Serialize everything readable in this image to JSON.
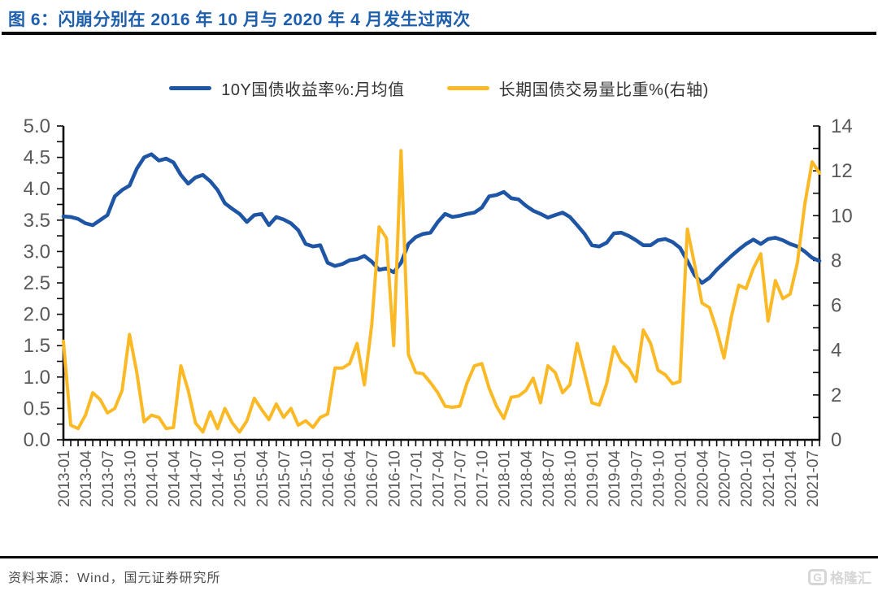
{
  "title": "图 6：闪崩分别在 2016 年 10 月与 2020 年 4 月发生过两次",
  "source_line": "资料来源：Wind，国元证券研究所",
  "logo_text": "格隆汇",
  "colors": {
    "title_blue": "#1e5fad",
    "series_blue": "#1f55a5",
    "series_yellow": "#fbba25",
    "axis_label_gray": "#595959",
    "axis_line_black": "#0a0a0a"
  },
  "chart_data": {
    "type": "line",
    "grid": false,
    "legend_position": "top-center",
    "x_start": "2013-01",
    "x_freq": "monthly",
    "x_label_every_n_months": 3,
    "x_tick_labels": [
      "2013-01",
      "2013-04",
      "2013-07",
      "2013-10",
      "2014-01",
      "2014-04",
      "2014-07",
      "2014-10",
      "2015-01",
      "2015-04",
      "2015-07",
      "2015-10",
      "2016-01",
      "2016-04",
      "2016-07",
      "2016-10",
      "2017-01",
      "2017-04",
      "2017-07",
      "2017-10",
      "2018-01",
      "2018-04",
      "2018-07",
      "2018-10",
      "2019-01",
      "2019-04",
      "2019-07",
      "2019-10",
      "2020-01",
      "2020-04",
      "2020-07",
      "2020-10",
      "2021-01",
      "2021-04",
      "2021-07"
    ],
    "left_axis": {
      "min": 0,
      "max": 5,
      "step": 0.5,
      "tick_labels": [
        "5.0",
        "4.5",
        "4.0",
        "3.5",
        "3.0",
        "2.5",
        "2.0",
        "1.5",
        "1.0",
        "0.5",
        "0.0"
      ]
    },
    "right_axis": {
      "min": 0,
      "max": 14,
      "step": 2,
      "tick_labels": [
        "14",
        "12",
        "10",
        "8",
        "6",
        "4",
        "2",
        "0"
      ]
    },
    "series": [
      {
        "name": "10Y国债收益率%:月均值",
        "axis": "left",
        "color": "#1f55a5",
        "values": [
          3.56,
          3.55,
          3.52,
          3.45,
          3.42,
          3.5,
          3.58,
          3.88,
          3.98,
          4.05,
          4.32,
          4.5,
          4.55,
          4.45,
          4.48,
          4.42,
          4.22,
          4.08,
          4.18,
          4.22,
          4.12,
          3.98,
          3.77,
          3.68,
          3.6,
          3.47,
          3.58,
          3.6,
          3.42,
          3.55,
          3.51,
          3.45,
          3.34,
          3.12,
          3.08,
          3.1,
          2.82,
          2.77,
          2.8,
          2.86,
          2.88,
          2.93,
          2.84,
          2.71,
          2.73,
          2.67,
          2.82,
          3.12,
          3.23,
          3.28,
          3.3,
          3.47,
          3.6,
          3.55,
          3.57,
          3.6,
          3.62,
          3.7,
          3.88,
          3.9,
          3.95,
          3.85,
          3.83,
          3.73,
          3.65,
          3.6,
          3.54,
          3.58,
          3.62,
          3.55,
          3.42,
          3.28,
          3.1,
          3.08,
          3.14,
          3.29,
          3.3,
          3.25,
          3.18,
          3.1,
          3.1,
          3.18,
          3.2,
          3.15,
          3.06,
          2.85,
          2.62,
          2.5,
          2.58,
          2.71,
          2.82,
          2.93,
          3.03,
          3.12,
          3.19,
          3.12,
          3.2,
          3.22,
          3.18,
          3.12,
          3.08,
          3.0,
          2.9,
          2.85
        ]
      },
      {
        "name": "长期国债交易量比重%(右轴)",
        "axis": "right",
        "color": "#fbba25",
        "values": [
          4.4,
          0.65,
          0.5,
          1.1,
          2.1,
          1.8,
          1.2,
          1.4,
          2.2,
          4.7,
          3.0,
          0.8,
          1.1,
          1.0,
          0.5,
          0.55,
          3.3,
          2.2,
          0.75,
          0.35,
          1.25,
          0.5,
          1.4,
          0.75,
          0.35,
          0.85,
          1.85,
          1.35,
          0.9,
          1.6,
          1.0,
          1.4,
          0.65,
          0.85,
          0.55,
          1.0,
          1.15,
          3.2,
          3.2,
          3.4,
          4.3,
          2.45,
          5.1,
          9.5,
          9.0,
          4.2,
          12.9,
          3.8,
          3.0,
          2.95,
          2.55,
          2.1,
          1.5,
          1.45,
          1.5,
          2.55,
          3.3,
          3.4,
          2.3,
          1.5,
          0.95,
          1.9,
          1.95,
          2.2,
          2.75,
          1.65,
          3.3,
          3.0,
          2.1,
          2.45,
          4.3,
          3.0,
          1.65,
          1.55,
          2.5,
          4.15,
          3.5,
          3.2,
          2.6,
          4.9,
          4.3,
          3.1,
          2.9,
          2.5,
          2.6,
          9.4,
          7.8,
          6.1,
          5.9,
          4.9,
          3.65,
          5.5,
          6.9,
          6.75,
          7.65,
          8.3,
          5.3,
          7.1,
          6.3,
          6.5,
          7.9,
          10.5,
          12.4,
          11.9
        ]
      }
    ]
  }
}
